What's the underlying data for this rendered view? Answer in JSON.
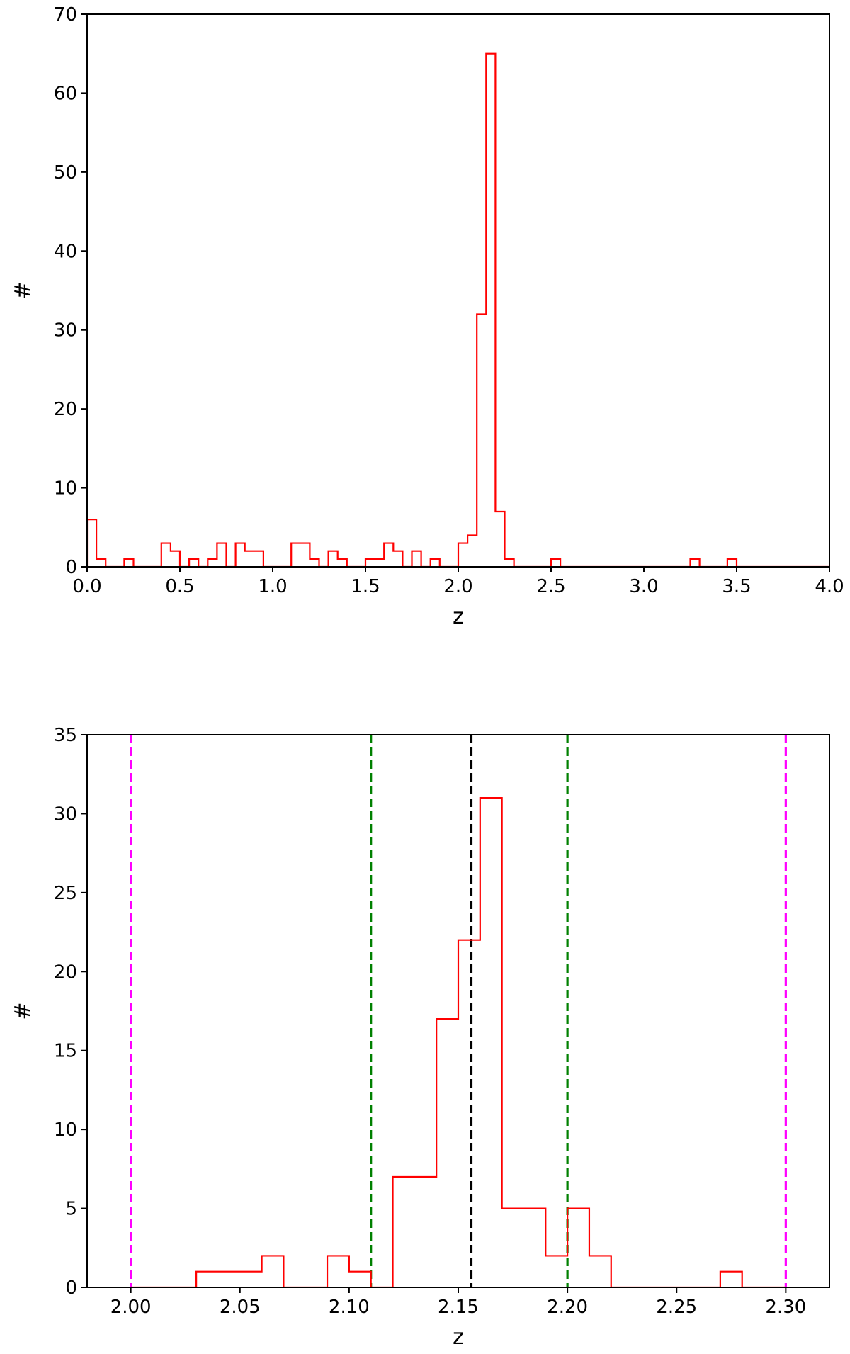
{
  "chart_data": [
    {
      "type": "histogram",
      "xlabel": "z",
      "ylabel": "#",
      "xlim": [
        0.0,
        4.0
      ],
      "ylim": [
        0,
        70
      ],
      "xticks": [
        "0.0",
        "0.5",
        "1.0",
        "1.5",
        "2.0",
        "2.5",
        "3.0",
        "3.5",
        "4.0"
      ],
      "yticks": [
        "0",
        "10",
        "20",
        "30",
        "40",
        "50",
        "60",
        "70"
      ],
      "xtick_values": [
        0.0,
        0.5,
        1.0,
        1.5,
        2.0,
        2.5,
        3.0,
        3.5,
        4.0
      ],
      "ytick_values": [
        0,
        10,
        20,
        30,
        40,
        50,
        60,
        70
      ],
      "bin_start": 0.0,
      "bin_width": 0.05,
      "counts": [
        6,
        1,
        0,
        0,
        1,
        0,
        0,
        0,
        3,
        2,
        0,
        1,
        0,
        1,
        3,
        0,
        3,
        2,
        2,
        0,
        0,
        0,
        3,
        3,
        1,
        0,
        2,
        1,
        0,
        0,
        1,
        1,
        3,
        2,
        0,
        2,
        0,
        1,
        0,
        0,
        3,
        4,
        32,
        65,
        7,
        1,
        0,
        0,
        0,
        0,
        1,
        0,
        0,
        0,
        0,
        0,
        0,
        0,
        0,
        0,
        0,
        0,
        0,
        0,
        0,
        1,
        0,
        0,
        0,
        1,
        0,
        0,
        0,
        0,
        0,
        0,
        0,
        0,
        0,
        0
      ],
      "histtype": "step",
      "color": "#ff0000",
      "vlines": [],
      "grid": false
    },
    {
      "type": "histogram",
      "xlabel": "z",
      "ylabel": "#",
      "xlim": [
        1.98,
        2.32
      ],
      "ylim": [
        0,
        35
      ],
      "xticks": [
        "2.00",
        "2.05",
        "2.10",
        "2.15",
        "2.20",
        "2.25",
        "2.30"
      ],
      "yticks": [
        "0",
        "5",
        "10",
        "15",
        "20",
        "25",
        "30",
        "35"
      ],
      "xtick_values": [
        2.0,
        2.05,
        2.1,
        2.15,
        2.2,
        2.25,
        2.3
      ],
      "ytick_values": [
        0,
        5,
        10,
        15,
        20,
        25,
        30,
        35
      ],
      "bin_start": 2.0,
      "bin_width": 0.01,
      "counts": [
        0,
        0,
        0,
        1,
        1,
        1,
        2,
        0,
        0,
        2,
        1,
        0,
        7,
        7,
        17,
        22,
        31,
        5,
        5,
        2,
        5,
        2,
        0,
        0,
        0,
        0,
        0,
        1,
        0,
        0
      ],
      "histtype": "step",
      "color": "#ff0000",
      "vlines": [
        {
          "x": 2.0,
          "color": "#ff00ff"
        },
        {
          "x": 2.11,
          "color": "#008000"
        },
        {
          "x": 2.156,
          "color": "#000000"
        },
        {
          "x": 2.2,
          "color": "#008000"
        },
        {
          "x": 2.3,
          "color": "#ff00ff"
        }
      ],
      "grid": false
    }
  ]
}
